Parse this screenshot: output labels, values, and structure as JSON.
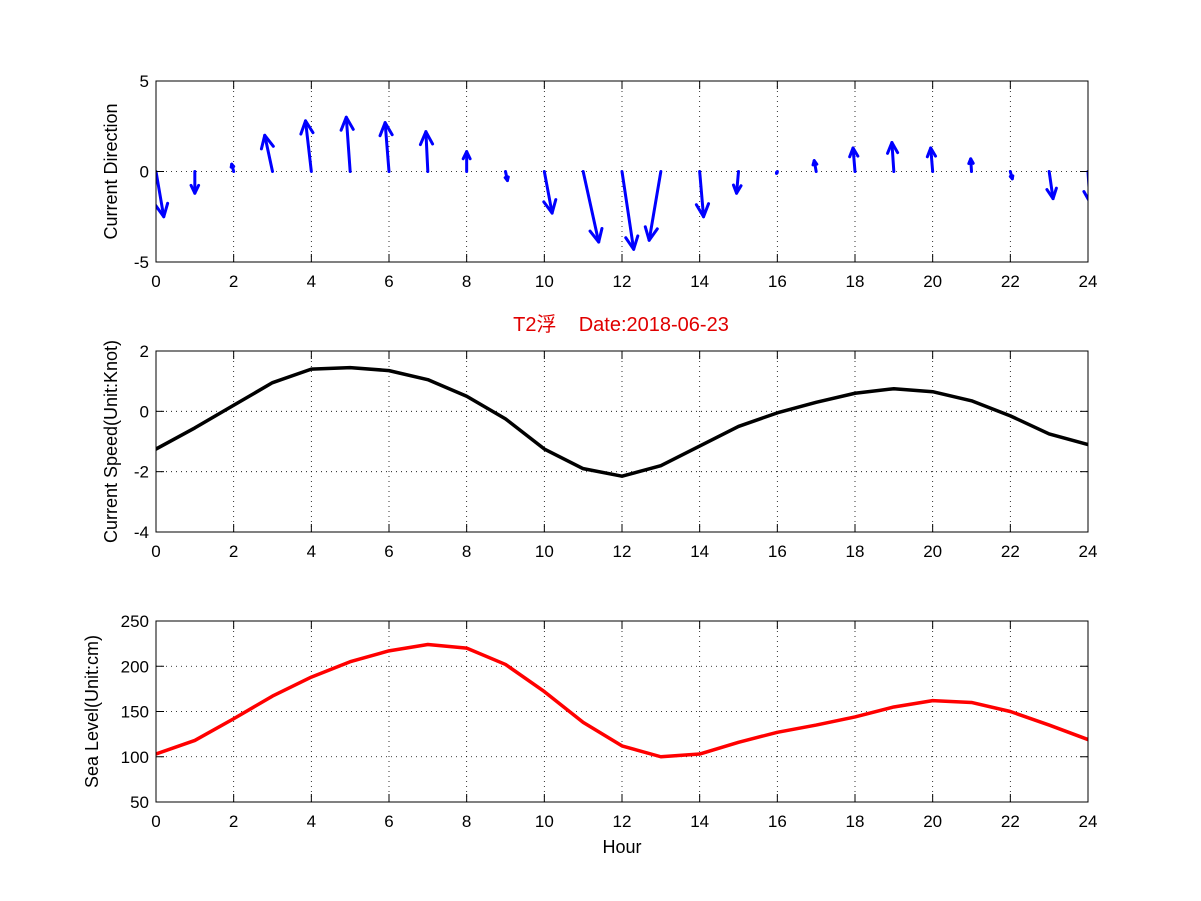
{
  "colors": {
    "direction_arrows": "#0000ff",
    "speed_line": "#000000",
    "sea_level_line": "#ff0000",
    "title": "#e00000"
  },
  "figure": {
    "title": "T2浮    Date:2018-06-23"
  },
  "chart_data": [
    {
      "id": "direction",
      "type": "quiver",
      "ylabel": "Current Direction",
      "xlabel": "",
      "xlim": [
        0,
        24
      ],
      "ylim": [
        -5,
        5
      ],
      "xticks": [
        0,
        2,
        4,
        6,
        8,
        10,
        12,
        14,
        16,
        18,
        20,
        22,
        24
      ],
      "yticks": [
        5,
        0,
        -5
      ],
      "grid": true,
      "x": [
        0,
        1,
        2,
        3,
        4,
        5,
        6,
        7,
        8,
        9,
        10,
        11,
        12,
        13,
        14,
        15,
        16,
        17,
        18,
        19,
        20,
        21,
        22,
        23,
        24
      ],
      "u": [
        0.2,
        0.0,
        -0.05,
        -0.2,
        -0.15,
        -0.1,
        -0.1,
        -0.05,
        0.0,
        0.05,
        0.2,
        0.4,
        0.3,
        -0.3,
        0.1,
        -0.05,
        -0.02,
        -0.05,
        -0.05,
        -0.05,
        -0.05,
        -0.02,
        0.05,
        0.1,
        0.05
      ],
      "v": [
        -2.5,
        -1.2,
        0.4,
        2.0,
        2.8,
        3.0,
        2.7,
        2.2,
        1.1,
        -0.5,
        -2.3,
        -3.9,
        -4.3,
        -3.8,
        -2.5,
        -1.2,
        -0.1,
        0.6,
        1.3,
        1.6,
        1.3,
        0.7,
        -0.4,
        -1.5,
        -1.7
      ]
    },
    {
      "id": "speed",
      "type": "line",
      "ylabel": "Current Speed(Unit:Knot)",
      "xlabel": "",
      "xlim": [
        0,
        24
      ],
      "ylim": [
        -4,
        2
      ],
      "xticks": [
        0,
        2,
        4,
        6,
        8,
        10,
        12,
        14,
        16,
        18,
        20,
        22,
        24
      ],
      "yticks": [
        2,
        0,
        -2,
        -4
      ],
      "grid": true,
      "x": [
        0,
        1,
        2,
        3,
        4,
        5,
        6,
        7,
        8,
        9,
        10,
        11,
        12,
        13,
        14,
        15,
        16,
        17,
        18,
        19,
        20,
        21,
        22,
        23,
        24
      ],
      "series": [
        {
          "values": [
            -1.25,
            -0.55,
            0.2,
            0.95,
            1.4,
            1.45,
            1.35,
            1.05,
            0.5,
            -0.25,
            -1.25,
            -1.9,
            -2.15,
            -1.8,
            -1.15,
            -0.5,
            -0.05,
            0.3,
            0.6,
            0.75,
            0.65,
            0.35,
            -0.15,
            -0.75,
            -1.1
          ]
        }
      ]
    },
    {
      "id": "sealevel",
      "type": "line",
      "ylabel": "Sea Level(Unit:cm)",
      "xlabel": "Hour",
      "xlim": [
        0,
        24
      ],
      "ylim": [
        50,
        250
      ],
      "xticks": [
        0,
        2,
        4,
        6,
        8,
        10,
        12,
        14,
        16,
        18,
        20,
        22,
        24
      ],
      "yticks": [
        250,
        200,
        150,
        100,
        50
      ],
      "grid": true,
      "x": [
        0,
        1,
        2,
        3,
        4,
        5,
        6,
        7,
        8,
        9,
        10,
        11,
        12,
        13,
        14,
        15,
        16,
        17,
        18,
        19,
        20,
        21,
        22,
        23,
        24
      ],
      "series": [
        {
          "values": [
            103,
            118,
            142,
            167,
            188,
            205,
            217,
            224,
            220,
            202,
            172,
            138,
            112,
            100,
            103,
            116,
            127,
            135,
            144,
            155,
            162,
            160,
            150,
            135,
            119
          ]
        }
      ]
    }
  ]
}
